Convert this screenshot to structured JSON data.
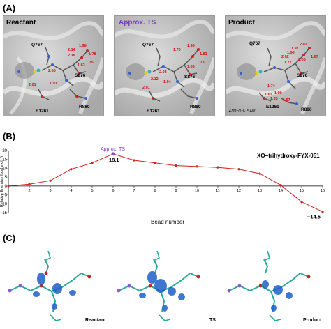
{
  "panels": {
    "a_label": "(A)",
    "b_label": "(B)",
    "c_label": "(C)"
  },
  "structures": [
    {
      "title": "Reactant",
      "residues": [
        "Q767",
        "S876",
        "R880",
        "E1261"
      ],
      "distances": [
        "2.14",
        "1.98",
        "1.78",
        "1.75",
        "2.16",
        "1.63",
        "2.65",
        "1.91",
        "2.01"
      ]
    },
    {
      "title": "Approx. TS",
      "residues": [
        "Q767",
        "S876",
        "R880",
        "E1261"
      ],
      "distances": [
        "1.70",
        "1.98",
        "1.81",
        "1.73",
        "1.63",
        "2.04",
        "1.94",
        "2.12",
        "2.01"
      ]
    },
    {
      "title": "Product",
      "residues": [
        "Q767",
        "S876",
        "R880",
        "E1261"
      ],
      "distances": [
        "1.93",
        "2.02",
        "2.62",
        "1.67",
        "1.77",
        "2.05",
        "1.97",
        "1.74",
        "1.90",
        "1.63",
        "1.57",
        "1.33"
      ],
      "angle": "∠Mo−N−C = 119°"
    }
  ],
  "chart_data": {
    "type": "line",
    "title": "XO−trihydroxy-FYX-051",
    "xlabel": "Bead number",
    "ylabel": "Relative Energies (kcal mol⁻¹)",
    "x": [
      1,
      2,
      3,
      4,
      5,
      6,
      7,
      8,
      9,
      10,
      11,
      12,
      13,
      14,
      15,
      16
    ],
    "y": [
      0,
      1,
      3,
      9.5,
      13,
      18.1,
      14.5,
      13,
      11.5,
      11,
      10.5,
      9.5,
      7,
      0.5,
      -9,
      -14.5
    ],
    "xticks": [
      "1",
      "2",
      "3",
      "4",
      "5",
      "6",
      "7",
      "8",
      "9",
      "10",
      "11",
      "12",
      "13",
      "14",
      "15",
      "16"
    ],
    "yticks": [
      "20",
      "15",
      "10",
      "5",
      "0",
      "−5",
      "−10",
      "−15"
    ],
    "ylim": [
      -15,
      20
    ],
    "xlim": [
      1,
      16
    ],
    "grid": false,
    "annotations": {
      "ts_label": "Approx. TS",
      "ts_value": "18.1",
      "end_value": "−14.5"
    },
    "line_color": "#d42020"
  },
  "esp": [
    {
      "label": "Reactant"
    },
    {
      "label": "TS"
    },
    {
      "label": "Product"
    }
  ]
}
